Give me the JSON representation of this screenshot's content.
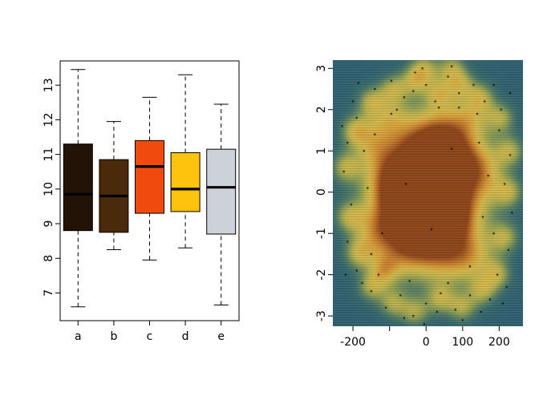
{
  "figure": {
    "background": "#ffffff"
  },
  "chart_data": [
    {
      "type": "boxplot",
      "title": "",
      "xlabel": "",
      "ylabel": "",
      "categories": [
        "a",
        "b",
        "c",
        "d",
        "e"
      ],
      "ylim": [
        6.2,
        13.7
      ],
      "yticks": [
        7,
        8,
        9,
        10,
        11,
        12,
        13
      ],
      "box_colors": [
        "#231307",
        "#4b2a0b",
        "#f04a0d",
        "#fdc30d",
        "#cdd2d8"
      ],
      "whisker_style": "dashed",
      "median_color": "#000000",
      "series": [
        {
          "name": "a",
          "min": 6.6,
          "q1": 8.8,
          "median": 9.85,
          "q3": 11.3,
          "max": 13.45
        },
        {
          "name": "b",
          "min": 8.25,
          "q1": 8.75,
          "median": 9.8,
          "q3": 10.85,
          "max": 11.95
        },
        {
          "name": "c",
          "min": 7.95,
          "q1": 9.3,
          "median": 10.65,
          "q3": 11.4,
          "max": 12.65
        },
        {
          "name": "d",
          "min": 8.3,
          "q1": 9.35,
          "median": 10.0,
          "q3": 11.05,
          "max": 13.3
        },
        {
          "name": "e",
          "min": 6.65,
          "q1": 8.7,
          "median": 10.05,
          "q3": 11.15,
          "max": 12.45
        }
      ]
    },
    {
      "type": "heatmap",
      "variant": "smooth-scatter-density",
      "title": "",
      "xlim": [
        -255,
        265
      ],
      "ylim": [
        -3.25,
        3.2
      ],
      "xticks": [
        -200,
        -100,
        0,
        100,
        200
      ],
      "xtick_labels": [
        "-200",
        "",
        "0",
        "100",
        "200"
      ],
      "yticks": [
        -3,
        -2,
        -1,
        0,
        1,
        2,
        3
      ],
      "ytick_labels": [
        "-3",
        "-2",
        "-1",
        "0",
        "1",
        "2",
        "3"
      ],
      "colormap": [
        {
          "t": 0.0,
          "color": "#2f6070"
        },
        {
          "t": 0.15,
          "color": "#3b6b6b"
        },
        {
          "t": 0.28,
          "color": "#5d8061"
        },
        {
          "t": 0.4,
          "color": "#8f9d52"
        },
        {
          "t": 0.52,
          "color": "#c0b34d"
        },
        {
          "t": 0.63,
          "color": "#d6b84a"
        },
        {
          "t": 0.74,
          "color": "#d89f38"
        },
        {
          "t": 0.84,
          "color": "#c47c2b"
        },
        {
          "t": 0.93,
          "color": "#a85a20"
        },
        {
          "t": 1.0,
          "color": "#8f4518"
        }
      ],
      "density_blobs": [
        [
          5,
          0,
          110,
          1.15,
          0.85
        ],
        [
          30,
          0.3,
          70,
          0.75,
          0.55
        ],
        [
          -50,
          -0.4,
          65,
          0.7,
          0.45
        ],
        [
          70,
          -0.7,
          55,
          0.55,
          0.4
        ],
        [
          -15,
          1.1,
          55,
          0.55,
          0.4
        ],
        [
          95,
          0.9,
          45,
          0.5,
          0.35
        ],
        [
          -105,
          0.3,
          45,
          0.55,
          0.35
        ],
        [
          -60,
          -1.5,
          50,
          0.45,
          0.3
        ],
        [
          55,
          -1.7,
          55,
          0.45,
          0.3
        ],
        [
          0,
          -0.9,
          70,
          0.6,
          0.35
        ],
        [
          45,
          1.5,
          45,
          0.45,
          0.3
        ],
        [
          -150,
          1.2,
          40,
          0.4,
          0.35
        ],
        [
          160,
          0.5,
          40,
          0.45,
          0.35
        ],
        [
          130,
          -1.6,
          45,
          0.4,
          0.35
        ],
        [
          -140,
          -1.0,
          40,
          0.4,
          0.35
        ],
        [
          120,
          1.8,
          40,
          0.35,
          0.35
        ],
        [
          -100,
          1.8,
          40,
          0.35,
          0.32
        ],
        [
          -150,
          2.2,
          28,
          0.26,
          0.42
        ],
        [
          -90,
          2.5,
          28,
          0.26,
          0.42
        ],
        [
          -30,
          2.7,
          28,
          0.26,
          0.42
        ],
        [
          35,
          2.4,
          28,
          0.26,
          0.42
        ],
        [
          95,
          2.6,
          28,
          0.26,
          0.42
        ],
        [
          150,
          2.3,
          28,
          0.26,
          0.42
        ],
        [
          -195,
          1.5,
          28,
          0.26,
          0.42
        ],
        [
          -220,
          0.6,
          28,
          0.26,
          0.42
        ],
        [
          -210,
          -0.6,
          28,
          0.26,
          0.42
        ],
        [
          -185,
          -1.5,
          28,
          0.26,
          0.42
        ],
        [
          205,
          1.8,
          28,
          0.26,
          0.42
        ],
        [
          230,
          1.0,
          28,
          0.26,
          0.42
        ],
        [
          225,
          0.0,
          28,
          0.26,
          0.42
        ],
        [
          215,
          -1.1,
          28,
          0.26,
          0.42
        ],
        [
          195,
          -2.0,
          28,
          0.26,
          0.42
        ],
        [
          -150,
          -2.3,
          28,
          0.26,
          0.42
        ],
        [
          -90,
          -2.7,
          28,
          0.26,
          0.42
        ],
        [
          -30,
          -2.9,
          28,
          0.26,
          0.42
        ],
        [
          40,
          -2.6,
          28,
          0.26,
          0.42
        ],
        [
          100,
          -2.8,
          28,
          0.26,
          0.42
        ],
        [
          155,
          -2.4,
          28,
          0.26,
          0.42
        ],
        [
          -5,
          3.0,
          28,
          0.26,
          0.42
        ],
        [
          70,
          3.0,
          28,
          0.26,
          0.42
        ],
        [
          -115,
          -1.9,
          28,
          0.26,
          0.42
        ]
      ],
      "point_color": "#000000",
      "points": [
        [
          -140,
          2.5
        ],
        [
          -95,
          2.7
        ],
        [
          -60,
          2.3
        ],
        [
          -30,
          2.9
        ],
        [
          0,
          2.6
        ],
        [
          25,
          2.2
        ],
        [
          60,
          2.8
        ],
        [
          90,
          2.4
        ],
        [
          130,
          2.6
        ],
        [
          160,
          2.2
        ],
        [
          -10,
          3.0
        ],
        [
          70,
          3.05
        ],
        [
          -190,
          1.8
        ],
        [
          -215,
          1.2
        ],
        [
          -225,
          0.5
        ],
        [
          200,
          1.5
        ],
        [
          230,
          0.9
        ],
        [
          215,
          0.2
        ],
        [
          -205,
          -0.3
        ],
        [
          235,
          -0.5
        ],
        [
          -215,
          -1.2
        ],
        [
          -190,
          -1.9
        ],
        [
          225,
          -1.4
        ],
        [
          195,
          -2.0
        ],
        [
          -150,
          -2.4
        ],
        [
          -110,
          -2.8
        ],
        [
          -70,
          -2.5
        ],
        [
          -35,
          -3.0
        ],
        [
          0,
          -2.7
        ],
        [
          40,
          -2.45
        ],
        [
          80,
          -2.85
        ],
        [
          120,
          -2.5
        ],
        [
          150,
          -2.9
        ],
        [
          -5,
          -3.2
        ],
        [
          100,
          -3.1
        ],
        [
          175,
          -2.6
        ],
        [
          -175,
          -2.2
        ],
        [
          -140,
          1.4
        ],
        [
          -120,
          -1.0
        ],
        [
          140,
          1.9
        ],
        [
          155,
          -0.6
        ],
        [
          -80,
          2.0
        ],
        [
          60,
          -2.2
        ],
        [
          -45,
          -2.15
        ],
        [
          170,
          0.4
        ],
        [
          -160,
          0.1
        ],
        [
          120,
          -1.8
        ],
        [
          -130,
          -2.0
        ],
        [
          35,
          2.05
        ],
        [
          -170,
          1.0
        ],
        [
          185,
          -1.0
        ],
        [
          -95,
          1.9
        ],
        [
          145,
          1.2
        ],
        [
          205,
          2.0
        ],
        [
          -200,
          2.2
        ],
        [
          220,
          -2.3
        ],
        [
          -220,
          -2.0
        ],
        [
          230,
          2.4
        ],
        [
          -230,
          1.6
        ],
        [
          -60,
          -3.05
        ],
        [
          30,
          -2.9
        ],
        [
          185,
          2.6
        ],
        [
          -185,
          2.65
        ],
        [
          210,
          -2.7
        ],
        [
          -35,
          2.45
        ],
        [
          90,
          2.05
        ],
        [
          -150,
          -1.5
        ],
        [
          70,
          1.05
        ],
        [
          -55,
          0.2
        ],
        [
          15,
          -0.9
        ]
      ]
    }
  ]
}
